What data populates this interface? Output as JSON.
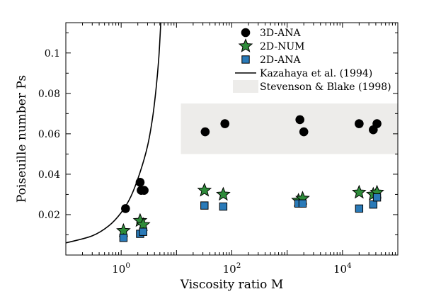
{
  "chart_data": {
    "type": "scatter",
    "title": "",
    "xlabel": "Viscosity ratio M",
    "ylabel": "Poiseuille number Ps",
    "xscale": "log",
    "xlim": [
      0.1,
      100000
    ],
    "ylim": [
      0.0,
      0.115
    ],
    "grid": false,
    "legend_position": "top-right",
    "x_ticks": [
      {
        "value": 1,
        "base": "10",
        "exp": "0"
      },
      {
        "value": 100,
        "base": "10",
        "exp": "2"
      },
      {
        "value": 10000,
        "base": "10",
        "exp": "4"
      }
    ],
    "y_ticks": [
      {
        "value": 0.02,
        "label": "0.02"
      },
      {
        "value": 0.04,
        "label": "0.04"
      },
      {
        "value": 0.06,
        "label": "0.06"
      },
      {
        "value": 0.08,
        "label": "0.08"
      },
      {
        "value": 0.1,
        "label": "0.1"
      }
    ],
    "series": [
      {
        "name": "3D-ANA",
        "marker": "circle",
        "color": "#000000",
        "points": [
          {
            "x": 1.2,
            "y": 0.023
          },
          {
            "x": 2.2,
            "y": 0.036
          },
          {
            "x": 2.3,
            "y": 0.032
          },
          {
            "x": 2.6,
            "y": 0.032
          },
          {
            "x": 33,
            "y": 0.061
          },
          {
            "x": 75,
            "y": 0.065
          },
          {
            "x": 1700,
            "y": 0.067
          },
          {
            "x": 2000,
            "y": 0.061
          },
          {
            "x": 20000,
            "y": 0.065
          },
          {
            "x": 36000,
            "y": 0.062
          },
          {
            "x": 42000,
            "y": 0.065
          }
        ]
      },
      {
        "name": "2D-NUM",
        "marker": "star",
        "color": "#2e8b3a",
        "points": [
          {
            "x": 1.1,
            "y": 0.012
          },
          {
            "x": 2.2,
            "y": 0.017
          },
          {
            "x": 2.5,
            "y": 0.015
          },
          {
            "x": 32,
            "y": 0.032
          },
          {
            "x": 70,
            "y": 0.03
          },
          {
            "x": 1600,
            "y": 0.027
          },
          {
            "x": 1900,
            "y": 0.028
          },
          {
            "x": 20000,
            "y": 0.031
          },
          {
            "x": 36000,
            "y": 0.03
          },
          {
            "x": 42000,
            "y": 0.031
          }
        ]
      },
      {
        "name": "2D-ANA",
        "marker": "square",
        "color": "#2a7ab8",
        "points": [
          {
            "x": 1.1,
            "y": 0.0085
          },
          {
            "x": 2.2,
            "y": 0.0105
          },
          {
            "x": 2.5,
            "y": 0.0115
          },
          {
            "x": 32,
            "y": 0.0245
          },
          {
            "x": 70,
            "y": 0.024
          },
          {
            "x": 1600,
            "y": 0.0255
          },
          {
            "x": 1900,
            "y": 0.0255
          },
          {
            "x": 20000,
            "y": 0.023
          },
          {
            "x": 36000,
            "y": 0.025
          },
          {
            "x": 42000,
            "y": 0.0285
          }
        ]
      },
      {
        "name": "Kazahaya et al. (1994)",
        "marker": "line",
        "color": "#000000",
        "points": [
          {
            "x": 0.1,
            "y": 0.006
          },
          {
            "x": 0.3,
            "y": 0.0095
          },
          {
            "x": 0.6,
            "y": 0.0145
          },
          {
            "x": 1.0,
            "y": 0.021
          },
          {
            "x": 1.5,
            "y": 0.029
          },
          {
            "x": 2.2,
            "y": 0.041
          },
          {
            "x": 3.0,
            "y": 0.054
          },
          {
            "x": 3.7,
            "y": 0.068
          },
          {
            "x": 4.3,
            "y": 0.083
          },
          {
            "x": 4.8,
            "y": 0.098
          },
          {
            "x": 5.2,
            "y": 0.115
          }
        ]
      }
    ],
    "shaded_region": {
      "name": "Stevenson & Blake (1998)",
      "x_from": 12,
      "x_to": 100000,
      "y_from": 0.05,
      "y_to": 0.075,
      "color": "#edecea"
    }
  }
}
